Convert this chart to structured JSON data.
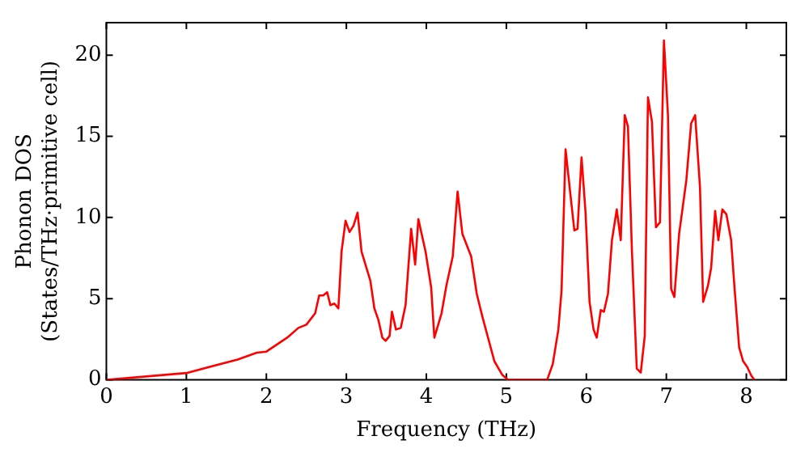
{
  "chart_data": {
    "type": "line",
    "xlabel": "Frequency (THz)",
    "ylabel": "Phonon DOS\n(States/THz·primitive cell)",
    "xlim": [
      0,
      8.5
    ],
    "xticks": [
      0,
      1,
      2,
      3,
      4,
      5,
      6,
      7,
      8
    ],
    "ylim": [
      0,
      22
    ],
    "yticks": [
      0,
      5,
      10,
      15,
      20
    ],
    "marker": "none",
    "line_style": "solid",
    "legend": false,
    "x": [
      0,
      1,
      1.64,
      1.88,
      2.0,
      2.26,
      2.4,
      2.5,
      2.61,
      2.66,
      2.71,
      2.76,
      2.8,
      2.85,
      2.9,
      2.94,
      2.99,
      3.04,
      3.09,
      3.14,
      3.19,
      3.3,
      3.35,
      3.4,
      3.45,
      3.49,
      3.54,
      3.57,
      3.62,
      3.68,
      3.74,
      3.81,
      3.86,
      3.9,
      3.99,
      4.06,
      4.1,
      4.16,
      4.19,
      4.25,
      4.33,
      4.39,
      4.45,
      4.56,
      4.63,
      4.7,
      4.85,
      4.95,
      5.02,
      5.51,
      5.58,
      5.65,
      5.69,
      5.74,
      5.81,
      5.85,
      5.89,
      5.94,
      5.99,
      6.04,
      6.09,
      6.13,
      6.18,
      6.22,
      6.27,
      6.32,
      6.38,
      6.43,
      6.48,
      6.52,
      6.57,
      6.63,
      6.68,
      6.73,
      6.77,
      6.82,
      6.87,
      6.92,
      6.97,
      7.02,
      7.06,
      7.1,
      7.16,
      7.25,
      7.31,
      7.36,
      7.42,
      7.46,
      7.52,
      7.56,
      7.61,
      7.65,
      7.7,
      7.75,
      7.81,
      7.85,
      7.91,
      7.96,
      8.01,
      8.06,
      8.1
    ],
    "series": [
      {
        "color": "#ff0000",
        "values": [
          0,
          0.42,
          1.25,
          1.67,
          1.74,
          2.6,
          3.2,
          3.4,
          4.1,
          5.2,
          5.2,
          5.4,
          4.6,
          4.7,
          4.4,
          7.9,
          9.8,
          9.1,
          9.5,
          10.3,
          7.9,
          6.1,
          4.4,
          3.7,
          2.6,
          2.4,
          2.7,
          4.2,
          3.1,
          3.2,
          4.6,
          9.3,
          7.1,
          9.9,
          7.9,
          5.7,
          2.6,
          3.6,
          4.1,
          5.8,
          7.6,
          11.6,
          9.0,
          7.6,
          5.3,
          3.9,
          1.15,
          0.3,
          0,
          0,
          0.97,
          3.1,
          5.5,
          14.2,
          11.0,
          9.2,
          9.3,
          13.7,
          10.3,
          4.8,
          3.1,
          2.6,
          4.3,
          4.2,
          5.3,
          8.6,
          10.5,
          8.6,
          16.3,
          15.6,
          7.9,
          0.7,
          0.45,
          2.7,
          17.4,
          15.9,
          9.4,
          9.7,
          20.9,
          16.3,
          5.6,
          5.1,
          9.0,
          12.3,
          15.8,
          16.3,
          11.9,
          4.8,
          5.8,
          6.9,
          10.4,
          8.6,
          10.5,
          10.2,
          8.6,
          5.8,
          2.0,
          1.15,
          0.8,
          0.28,
          0
        ]
      }
    ]
  }
}
